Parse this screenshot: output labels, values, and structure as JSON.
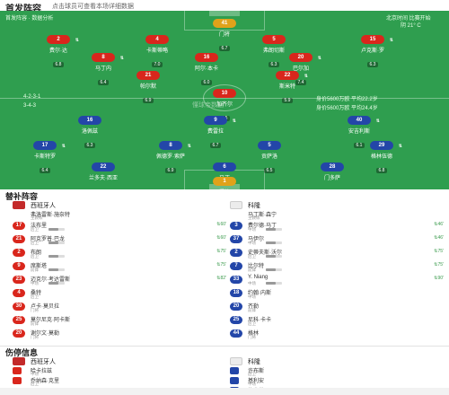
{
  "header": {
    "title": "首发阵容",
    "subtitle": "点击球员可查看本场详细数据"
  },
  "pitch": {
    "home_formation": "4-2-3-1",
    "home_formation_alt": "3-4-3",
    "home_value": "身价5600万欧  平均22.2岁",
    "away_value": "身价5600万欧  平均24.4岁",
    "watermark": "懂球帝数据",
    "top_left_text": "首发阵容 · 数据分析",
    "top_right_text": "北京时间 比赛开始",
    "top_right_sub": "阴 21° C"
  },
  "home_players": [
    {
      "num": "41",
      "name": "门将",
      "rate": "6.7",
      "color": "gold"
    },
    {
      "num": "2",
      "name": "费尔·达",
      "rate": "6.8",
      "color": "red"
    },
    {
      "num": "4",
      "name": "卡斯蒂略",
      "rate": "7.0",
      "color": "red"
    },
    {
      "num": "5",
      "name": "弗朗切斯",
      "rate": "6.3",
      "color": "red"
    },
    {
      "num": "15",
      "name": "卢克斯·罗",
      "rate": "6.3",
      "color": "red"
    },
    {
      "num": "8",
      "name": "马丁内",
      "rate": "6.4",
      "color": "red"
    },
    {
      "num": "16",
      "name": "阿尔·本卡",
      "rate": "6.0",
      "color": "red"
    },
    {
      "num": "20",
      "name": "巴尔加",
      "rate": "7.4",
      "color": "red"
    },
    {
      "num": "21",
      "name": "帕尔默",
      "rate": "6.9",
      "color": "red"
    },
    {
      "num": "22",
      "name": "斯米特",
      "rate": "5.9",
      "color": "red"
    },
    {
      "num": "10",
      "name": "加齐尔",
      "rate": "6.5",
      "color": "red"
    }
  ],
  "away_players": [
    {
      "num": "16",
      "name": "洛佩兹",
      "rate": "6.3",
      "color": "blue"
    },
    {
      "num": "9",
      "name": "费雷拉",
      "rate": "6.7",
      "color": "blue"
    },
    {
      "num": "40",
      "name": "安吉利斯",
      "rate": "6.1",
      "color": "blue"
    },
    {
      "num": "17",
      "name": "卡斯特罗",
      "rate": "6.4",
      "color": "blue"
    },
    {
      "num": "8",
      "name": "佩德罗·索萨",
      "rate": "6.9",
      "color": "blue"
    },
    {
      "num": "5",
      "name": "贡萨洛",
      "rate": "6.5",
      "color": "blue"
    },
    {
      "num": "29",
      "name": "格林伍德",
      "rate": "6.8",
      "color": "blue"
    },
    {
      "num": "22",
      "name": "兰多夫·西亚",
      "rate": "6.7",
      "color": "blue"
    },
    {
      "num": "6",
      "name": "马丁",
      "rate": "7.0",
      "color": "blue"
    },
    {
      "num": "28",
      "name": "门多萨",
      "rate": "6.8",
      "color": "blue"
    },
    {
      "num": "1",
      "name": "门将",
      "rate": "6.0",
      "color": "gold"
    }
  ],
  "subs": {
    "title": "替补阵容",
    "home": {
      "team_name": "西班牙人",
      "coach": "弗洛雷斯·施奈特",
      "coach_role": "主教练",
      "players": [
        {
          "num": "17",
          "name": "法布里",
          "pos": "后卫",
          "time": "60'"
        },
        {
          "num": "21",
          "name": "阿克罗普·巴龙",
          "pos": "后卫",
          "time": "60'"
        },
        {
          "num": "2",
          "name": "布朗",
          "pos": "后卫",
          "time": "75'"
        },
        {
          "num": "9",
          "name": "席斯塔",
          "pos": "前锋",
          "time": "75'"
        },
        {
          "num": "23",
          "name": "迈克尔·考达雷斯",
          "pos": "中场",
          "time": "82'"
        },
        {
          "num": "4",
          "name": "桑特",
          "pos": "后卫",
          "time": ""
        },
        {
          "num": "30",
          "name": "卢卡·莫贝拉",
          "pos": "门将",
          "time": ""
        },
        {
          "num": "25",
          "name": "莫尔尼克·阿卡斯",
          "pos": "前锋",
          "time": ""
        },
        {
          "num": "20",
          "name": "谢尔文·莫勒",
          "pos": "门将",
          "time": ""
        }
      ]
    },
    "away": {
      "team_name": "科隆",
      "coach": "马丁斯·森宁",
      "coach_role": "主教练",
      "players": [
        {
          "num": "3",
          "name": "费尔德·马丁",
          "pos": "中场",
          "time": "46'"
        },
        {
          "num": "37",
          "name": "马伊尔",
          "pos": "中场",
          "time": "46'"
        },
        {
          "num": "2",
          "name": "史蒂夫斯·沃尔",
          "pos": "后卫",
          "time": "75'"
        },
        {
          "num": "7",
          "name": "比尔特",
          "pos": "前锋",
          "time": "75'"
        },
        {
          "num": "33",
          "name": "Y. Niang",
          "pos": "中场",
          "time": "90'"
        },
        {
          "num": "18",
          "name": "约翰·内斯",
          "pos": "中场",
          "time": ""
        },
        {
          "num": "20",
          "name": "齐勒",
          "pos": "前锋",
          "time": ""
        },
        {
          "num": "25",
          "name": "尼科·卡卡",
          "pos": "后卫",
          "time": ""
        },
        {
          "num": "44",
          "name": "格林",
          "pos": "门将",
          "time": ""
        }
      ]
    }
  },
  "injuries": {
    "title": "伤停信息",
    "home": {
      "team_name": "西班牙人",
      "players": [
        {
          "name": "哈卡拉兹",
          "pos": "中场"
        },
        {
          "name": "乔纳森·克里",
          "pos": "后卫"
        }
      ]
    },
    "away": {
      "team_name": "科隆",
      "players": [
        {
          "name": "许布斯",
          "pos": "后卫"
        },
        {
          "name": "基利安",
          "pos": "中场"
        },
        {
          "name": "施米茨",
          "pos": "后卫"
        },
        {
          "name": "拉斯-施罗贝尔维兹",
          "pos": "前锋"
        }
      ]
    }
  }
}
